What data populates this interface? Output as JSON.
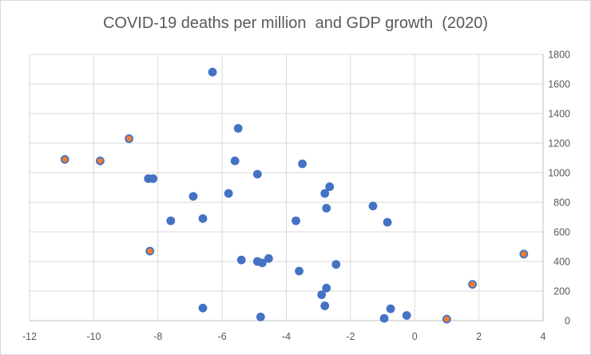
{
  "chart_data": {
    "type": "scatter",
    "title": "COVID-19 deaths per million  and GDP growth  (2020)",
    "xlabel": "",
    "ylabel": "",
    "xlim": [
      -12,
      4
    ],
    "ylim": [
      0,
      1800
    ],
    "x_ticks": [
      -12,
      -10,
      -8,
      -6,
      -4,
      -2,
      0,
      2,
      4
    ],
    "y_ticks": [
      0,
      200,
      400,
      600,
      800,
      1000,
      1200,
      1400,
      1600,
      1800
    ],
    "grid": true,
    "legend": "none",
    "y_axis_side": "right",
    "series": [
      {
        "name": "blue",
        "color": "#4472C4",
        "points": [
          {
            "x": -6.3,
            "y": 1680
          },
          {
            "x": -5.5,
            "y": 1300
          },
          {
            "x": -5.6,
            "y": 1080
          },
          {
            "x": -4.9,
            "y": 990
          },
          {
            "x": -3.5,
            "y": 1060
          },
          {
            "x": -8.3,
            "y": 960
          },
          {
            "x": -8.15,
            "y": 960
          },
          {
            "x": -6.9,
            "y": 840
          },
          {
            "x": -5.8,
            "y": 860
          },
          {
            "x": -2.65,
            "y": 905
          },
          {
            "x": -2.8,
            "y": 860
          },
          {
            "x": -2.75,
            "y": 760
          },
          {
            "x": -1.3,
            "y": 775
          },
          {
            "x": -0.85,
            "y": 665
          },
          {
            "x": -7.6,
            "y": 675
          },
          {
            "x": -6.6,
            "y": 690
          },
          {
            "x": -3.7,
            "y": 675
          },
          {
            "x": -5.4,
            "y": 410
          },
          {
            "x": -4.9,
            "y": 400
          },
          {
            "x": -4.75,
            "y": 390
          },
          {
            "x": -4.55,
            "y": 420
          },
          {
            "x": -2.45,
            "y": 380
          },
          {
            "x": -3.6,
            "y": 335
          },
          {
            "x": -2.75,
            "y": 220
          },
          {
            "x": -2.9,
            "y": 175
          },
          {
            "x": -2.8,
            "y": 100
          },
          {
            "x": -0.75,
            "y": 80
          },
          {
            "x": -0.25,
            "y": 35
          },
          {
            "x": -0.95,
            "y": 15
          },
          {
            "x": -6.6,
            "y": 85
          },
          {
            "x": -4.8,
            "y": 25
          }
        ]
      },
      {
        "name": "orange",
        "color": "#4472C4",
        "inner_color": "#ED7D31",
        "points": [
          {
            "x": -10.9,
            "y": 1090
          },
          {
            "x": -9.8,
            "y": 1080
          },
          {
            "x": -8.9,
            "y": 1230
          },
          {
            "x": -8.25,
            "y": 470
          },
          {
            "x": 3.4,
            "y": 450
          },
          {
            "x": 1.8,
            "y": 245
          },
          {
            "x": 1.0,
            "y": 10
          }
        ]
      }
    ]
  }
}
